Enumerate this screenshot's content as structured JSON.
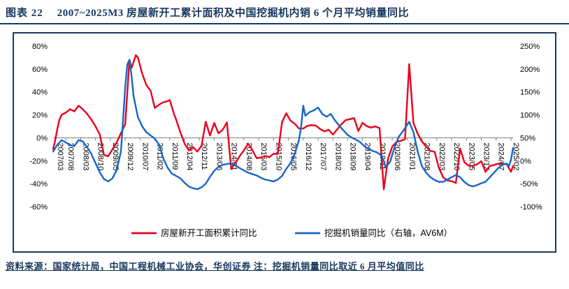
{
  "header": {
    "figure_label": "图表 22",
    "title": "2007~2025M3 房屋新开工累计面积及中国挖掘机内销 6 个月平均销量同比"
  },
  "footer": {
    "text": "资料来源：国家统计局，中国工程机械工业协会，华创证券  注：挖掘机销量同比取近 6 月平均值同比"
  },
  "colors": {
    "accent_navy": "#17375E",
    "box_border": "#1F3864",
    "red_series": "#E8001C",
    "blue_series": "#1467C8",
    "axis_line": "#7f7f7f"
  },
  "chart_data": {
    "type": "line",
    "title": "2007~2025M3 房屋新开工累计面积及中国挖掘机内销 6 个月平均销量同比",
    "legend_position": "bottom",
    "grid": "off",
    "left_axis": {
      "min": -60,
      "max": 80,
      "ticks": [
        "80%",
        "60%",
        "40%",
        "20%",
        "0%",
        "-20%",
        "-40%",
        "-60%"
      ]
    },
    "right_axis": {
      "min": -100,
      "max": 250,
      "ticks": [
        "250%",
        "200%",
        "150%",
        "100%",
        "50%",
        "0%",
        "-50%",
        "-100%"
      ]
    },
    "x_range": {
      "min": "2007/02",
      "max": "2025/03"
    },
    "x_ticks": [
      "2007/03",
      "2007/08",
      "2008/03",
      "2008/10",
      "2009/05",
      "2009/12",
      "2010/07",
      "2011/02",
      "2011/09",
      "2012/04",
      "2012/11",
      "2013/06",
      "2014/01",
      "2014/08",
      "2015/03",
      "2015/10",
      "2016/05",
      "2016/12",
      "2017/07",
      "2018/02",
      "2018/09",
      "2019/04",
      "2019/11",
      "2020/06",
      "2021/01",
      "2021/08",
      "2022/03",
      "2022/10",
      "2023/05",
      "2023/12",
      "2024/07",
      "2025/02"
    ],
    "series": [
      {
        "name": "房屋新开工面积累计同比",
        "axis": "left",
        "color": "#E8001C",
        "points": [
          [
            "2007/02",
            -10
          ],
          [
            "2007/03",
            -2
          ],
          [
            "2007/04",
            8
          ],
          [
            "2007/05",
            16
          ],
          [
            "2007/06",
            20
          ],
          [
            "2007/08",
            22
          ],
          [
            "2007/10",
            25
          ],
          [
            "2007/12",
            23
          ],
          [
            "2008/02",
            28
          ],
          [
            "2008/04",
            25
          ],
          [
            "2008/06",
            21
          ],
          [
            "2008/08",
            16
          ],
          [
            "2008/10",
            10
          ],
          [
            "2008/12",
            3
          ],
          [
            "2009/02",
            -15
          ],
          [
            "2009/04",
            -16
          ],
          [
            "2009/06",
            -10
          ],
          [
            "2009/08",
            -4
          ],
          [
            "2009/10",
            4
          ],
          [
            "2009/12",
            12
          ],
          [
            "2010/02",
            68
          ],
          [
            "2010/03",
            61
          ],
          [
            "2010/05",
            72
          ],
          [
            "2010/06",
            70
          ],
          [
            "2010/08",
            56
          ],
          [
            "2010/10",
            46
          ],
          [
            "2010/12",
            41
          ],
          [
            "2011/02",
            26
          ],
          [
            "2011/04",
            29
          ],
          [
            "2011/06",
            31
          ],
          [
            "2011/08",
            32
          ],
          [
            "2011/09",
            33
          ],
          [
            "2011/11",
            21
          ],
          [
            "2011/12",
            16
          ],
          [
            "2012/02",
            5
          ],
          [
            "2012/04",
            -5
          ],
          [
            "2012/06",
            -11
          ],
          [
            "2012/08",
            -8
          ],
          [
            "2012/10",
            -12
          ],
          [
            "2012/12",
            -7
          ],
          [
            "2013/02",
            14
          ],
          [
            "2013/04",
            2
          ],
          [
            "2013/06",
            13
          ],
          [
            "2013/08",
            4
          ],
          [
            "2013/10",
            7
          ],
          [
            "2013/12",
            13.5
          ],
          [
            "2014/02",
            -27
          ],
          [
            "2014/04",
            -22
          ],
          [
            "2014/06",
            -16
          ],
          [
            "2014/08",
            -11
          ],
          [
            "2014/10",
            -5
          ],
          [
            "2014/12",
            -10.7
          ],
          [
            "2015/02",
            -17.7
          ],
          [
            "2015/04",
            -17.3
          ],
          [
            "2015/06",
            -15.8
          ],
          [
            "2015/08",
            -16.8
          ],
          [
            "2015/10",
            -13.9
          ],
          [
            "2015/12",
            -14
          ],
          [
            "2016/02",
            13.7
          ],
          [
            "2016/04",
            21.4
          ],
          [
            "2016/06",
            14.9
          ],
          [
            "2016/08",
            12.2
          ],
          [
            "2016/10",
            8.1
          ],
          [
            "2016/12",
            8.1
          ],
          [
            "2017/02",
            10.4
          ],
          [
            "2017/04",
            11.1
          ],
          [
            "2017/06",
            10.6
          ],
          [
            "2017/08",
            7.6
          ],
          [
            "2017/10",
            5.6
          ],
          [
            "2017/12",
            7
          ],
          [
            "2018/02",
            2.9
          ],
          [
            "2018/04",
            7.3
          ],
          [
            "2018/06",
            11.8
          ],
          [
            "2018/08",
            15.4
          ],
          [
            "2018/10",
            16.3
          ],
          [
            "2018/12",
            17.2
          ],
          [
            "2019/02",
            6
          ],
          [
            "2019/04",
            13.1
          ],
          [
            "2019/06",
            10.1
          ],
          [
            "2019/08",
            8.9
          ],
          [
            "2019/10",
            10
          ],
          [
            "2019/12",
            8.5
          ],
          [
            "2020/02",
            -44.9
          ],
          [
            "2020/04",
            -18.4
          ],
          [
            "2020/06",
            -7.6
          ],
          [
            "2020/08",
            -3.6
          ],
          [
            "2020/10",
            -2.6
          ],
          [
            "2020/12",
            -1.2
          ],
          [
            "2021/02",
            64.3
          ],
          [
            "2021/04",
            12.8
          ],
          [
            "2021/06",
            3.6
          ],
          [
            "2021/08",
            -3.2
          ],
          [
            "2021/10",
            -7.7
          ],
          [
            "2021/12",
            -11.4
          ],
          [
            "2022/02",
            -12.2
          ],
          [
            "2022/04",
            -26.3
          ],
          [
            "2022/06",
            -34.4
          ],
          [
            "2022/08",
            -37.2
          ],
          [
            "2022/10",
            -37.8
          ],
          [
            "2022/12",
            -39.4
          ],
          [
            "2023/02",
            -9.4
          ],
          [
            "2023/04",
            -21.2
          ],
          [
            "2023/06",
            -24.3
          ],
          [
            "2023/08",
            -24.4
          ],
          [
            "2023/10",
            -23.2
          ],
          [
            "2023/12",
            -20.4
          ],
          [
            "2024/02",
            -29.7
          ],
          [
            "2024/04",
            -24.6
          ],
          [
            "2024/06",
            -23.7
          ],
          [
            "2024/08",
            -22.5
          ],
          [
            "2024/10",
            -22.6
          ],
          [
            "2024/12",
            -23
          ],
          [
            "2025/02",
            -29.6
          ],
          [
            "2025/03",
            -24.4
          ]
        ]
      },
      {
        "name": "挖掘机销量同比（右轴，AV6M）",
        "axis": "right",
        "color": "#1467C8",
        "points": [
          [
            "2007/02",
            20
          ],
          [
            "2007/04",
            35
          ],
          [
            "2007/06",
            45
          ],
          [
            "2007/08",
            40
          ],
          [
            "2007/10",
            34
          ],
          [
            "2007/12",
            32
          ],
          [
            "2008/02",
            45
          ],
          [
            "2008/04",
            42
          ],
          [
            "2008/06",
            30
          ],
          [
            "2008/08",
            15
          ],
          [
            "2008/10",
            -5
          ],
          [
            "2008/12",
            -25
          ],
          [
            "2009/02",
            -40
          ],
          [
            "2009/04",
            -45
          ],
          [
            "2009/06",
            -38
          ],
          [
            "2009/08",
            -20
          ],
          [
            "2009/10",
            20
          ],
          [
            "2009/11",
            90
          ],
          [
            "2009/12",
            160
          ],
          [
            "2010/01",
            210
          ],
          [
            "2010/02",
            220
          ],
          [
            "2010/03",
            185
          ],
          [
            "2010/04",
            140
          ],
          [
            "2010/06",
            95
          ],
          [
            "2010/08",
            75
          ],
          [
            "2010/10",
            62
          ],
          [
            "2010/12",
            55
          ],
          [
            "2011/02",
            48
          ],
          [
            "2011/04",
            35
          ],
          [
            "2011/06",
            5
          ],
          [
            "2011/08",
            -15
          ],
          [
            "2011/10",
            -28
          ],
          [
            "2011/12",
            -33
          ],
          [
            "2012/02",
            -38
          ],
          [
            "2012/04",
            -48
          ],
          [
            "2012/06",
            -56
          ],
          [
            "2012/08",
            -60
          ],
          [
            "2012/10",
            -62
          ],
          [
            "2012/12",
            -58
          ],
          [
            "2013/02",
            -50
          ],
          [
            "2013/04",
            -35
          ],
          [
            "2013/06",
            -22
          ],
          [
            "2013/08",
            -13
          ],
          [
            "2013/10",
            -9
          ],
          [
            "2013/12",
            -7
          ],
          [
            "2014/02",
            -6
          ],
          [
            "2014/04",
            -10
          ],
          [
            "2014/06",
            -16
          ],
          [
            "2014/08",
            -21
          ],
          [
            "2014/10",
            -26
          ],
          [
            "2014/12",
            -29
          ],
          [
            "2015/02",
            -32
          ],
          [
            "2015/04",
            -37
          ],
          [
            "2015/06",
            -41
          ],
          [
            "2015/08",
            -43
          ],
          [
            "2015/10",
            -45
          ],
          [
            "2015/12",
            -41
          ],
          [
            "2016/02",
            -33
          ],
          [
            "2016/04",
            -18
          ],
          [
            "2016/06",
            -5
          ],
          [
            "2016/08",
            15
          ],
          [
            "2016/10",
            45
          ],
          [
            "2016/11",
            75
          ],
          [
            "2016/12",
            120
          ],
          [
            "2017/01",
            98
          ],
          [
            "2017/03",
            106
          ],
          [
            "2017/05",
            110
          ],
          [
            "2017/07",
            116
          ],
          [
            "2017/09",
            102
          ],
          [
            "2017/11",
            96
          ],
          [
            "2018/01",
            102
          ],
          [
            "2018/03",
            88
          ],
          [
            "2018/05",
            76
          ],
          [
            "2018/07",
            66
          ],
          [
            "2018/09",
            56
          ],
          [
            "2018/11",
            50
          ],
          [
            "2019/01",
            46
          ],
          [
            "2019/03",
            40
          ],
          [
            "2019/05",
            31
          ],
          [
            "2019/07",
            25
          ],
          [
            "2019/09",
            21
          ],
          [
            "2019/11",
            18
          ],
          [
            "2020/01",
            10
          ],
          [
            "2020/03",
            -14
          ],
          [
            "2020/05",
            -2
          ],
          [
            "2020/07",
            28
          ],
          [
            "2020/09",
            52
          ],
          [
            "2020/11",
            64
          ],
          [
            "2021/01",
            78
          ],
          [
            "2021/02",
            85
          ],
          [
            "2021/04",
            62
          ],
          [
            "2021/06",
            20
          ],
          [
            "2021/08",
            -12
          ],
          [
            "2021/10",
            -26
          ],
          [
            "2021/12",
            -36
          ],
          [
            "2022/02",
            -42
          ],
          [
            "2022/04",
            -46
          ],
          [
            "2022/06",
            -46
          ],
          [
            "2022/08",
            -41
          ],
          [
            "2022/10",
            -36
          ],
          [
            "2022/12",
            -31
          ],
          [
            "2023/02",
            -36
          ],
          [
            "2023/04",
            -46
          ],
          [
            "2023/06",
            -53
          ],
          [
            "2023/08",
            -56
          ],
          [
            "2023/10",
            -53
          ],
          [
            "2023/12",
            -49
          ],
          [
            "2024/02",
            -46
          ],
          [
            "2024/04",
            -36
          ],
          [
            "2024/06",
            -26
          ],
          [
            "2024/08",
            -16
          ],
          [
            "2024/10",
            -9
          ],
          [
            "2024/12",
            -6
          ],
          [
            "2025/01",
            -12
          ],
          [
            "2025/02",
            2
          ],
          [
            "2025/03",
            28
          ]
        ]
      }
    ]
  }
}
